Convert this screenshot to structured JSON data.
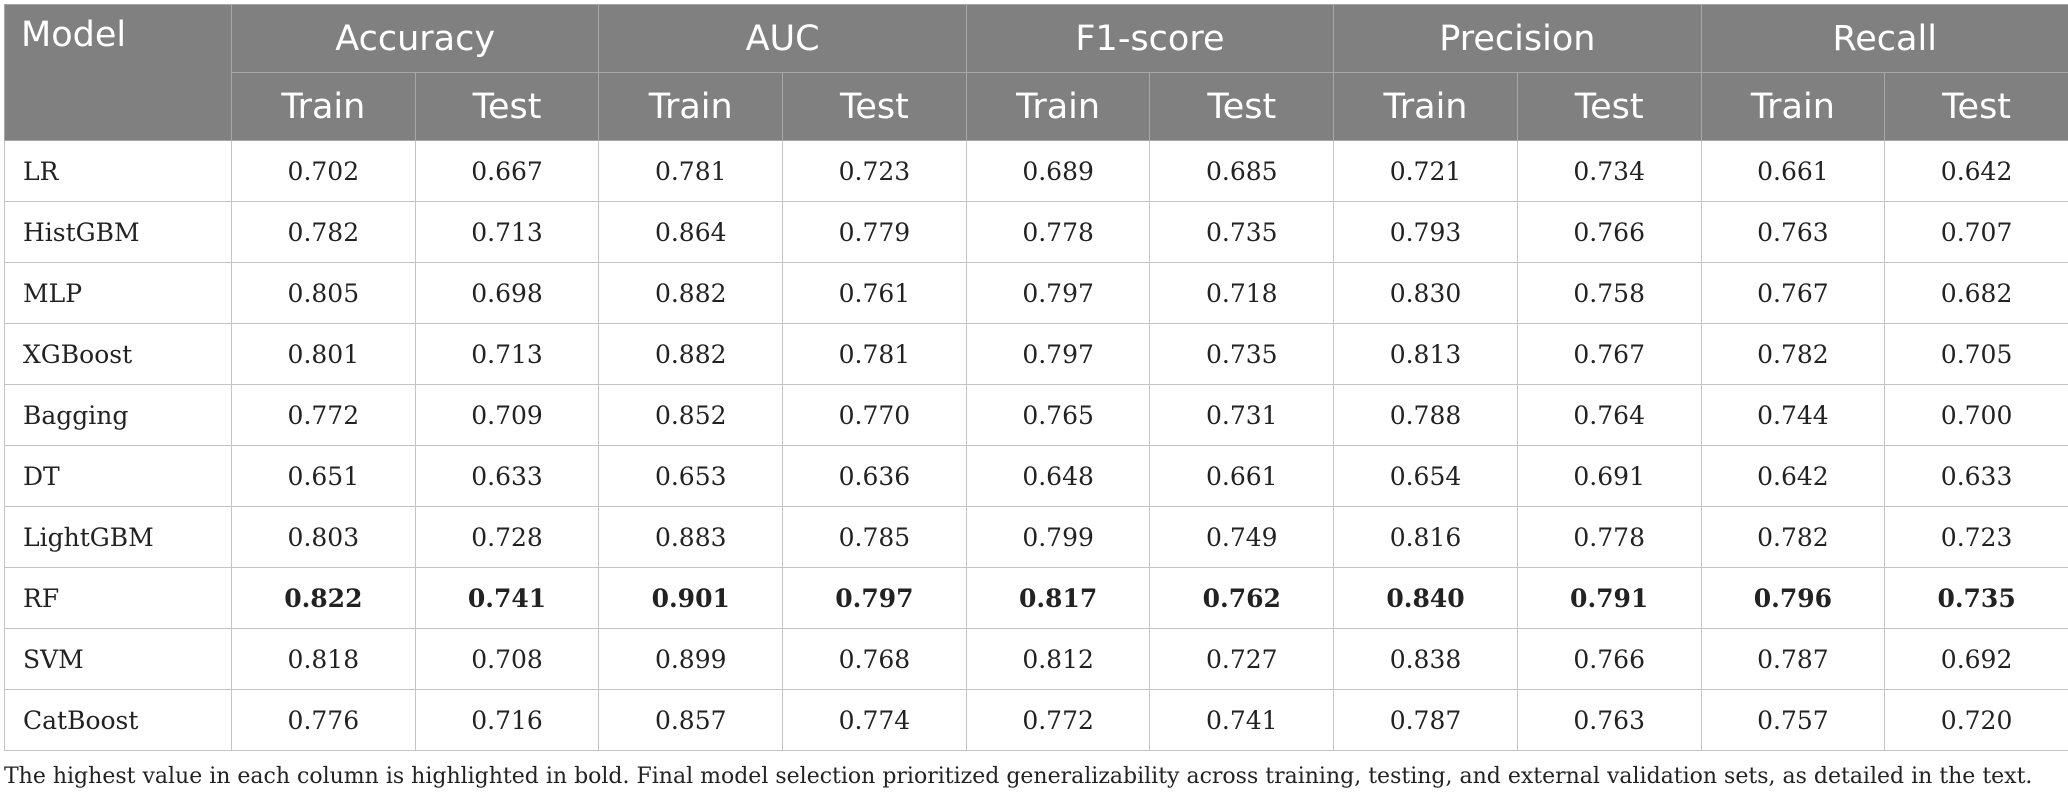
{
  "table": {
    "model_header": "Model",
    "metrics": [
      "Accuracy",
      "AUC",
      "F1-score",
      "Precision",
      "Recall"
    ],
    "subheaders": [
      "Train",
      "Test"
    ],
    "rows": [
      {
        "model": "LR",
        "values": [
          "0.702",
          "0.667",
          "0.781",
          "0.723",
          "0.689",
          "0.685",
          "0.721",
          "0.734",
          "0.661",
          "0.642"
        ]
      },
      {
        "model": "HistGBM",
        "values": [
          "0.782",
          "0.713",
          "0.864",
          "0.779",
          "0.778",
          "0.735",
          "0.793",
          "0.766",
          "0.763",
          "0.707"
        ]
      },
      {
        "model": "MLP",
        "values": [
          "0.805",
          "0.698",
          "0.882",
          "0.761",
          "0.797",
          "0.718",
          "0.830",
          "0.758",
          "0.767",
          "0.682"
        ]
      },
      {
        "model": "XGBoost",
        "values": [
          "0.801",
          "0.713",
          "0.882",
          "0.781",
          "0.797",
          "0.735",
          "0.813",
          "0.767",
          "0.782",
          "0.705"
        ]
      },
      {
        "model": "Bagging",
        "values": [
          "0.772",
          "0.709",
          "0.852",
          "0.770",
          "0.765",
          "0.731",
          "0.788",
          "0.764",
          "0.744",
          "0.700"
        ]
      },
      {
        "model": "DT",
        "values": [
          "0.651",
          "0.633",
          "0.653",
          "0.636",
          "0.648",
          "0.661",
          "0.654",
          "0.691",
          "0.642",
          "0.633"
        ]
      },
      {
        "model": "LightGBM",
        "values": [
          "0.803",
          "0.728",
          "0.883",
          "0.785",
          "0.799",
          "0.749",
          "0.816",
          "0.778",
          "0.782",
          "0.723"
        ]
      },
      {
        "model": "RF",
        "bold": true,
        "values": [
          "0.822",
          "0.741",
          "0.901",
          "0.797",
          "0.817",
          "0.762",
          "0.840",
          "0.791",
          "0.796",
          "0.735"
        ]
      },
      {
        "model": "SVM",
        "values": [
          "0.818",
          "0.708",
          "0.899",
          "0.768",
          "0.812",
          "0.727",
          "0.838",
          "0.766",
          "0.787",
          "0.692"
        ]
      },
      {
        "model": "CatBoost",
        "values": [
          "0.776",
          "0.716",
          "0.857",
          "0.774",
          "0.772",
          "0.741",
          "0.787",
          "0.763",
          "0.757",
          "0.720"
        ]
      }
    ]
  },
  "footnote": "The highest value in each column is highlighted in bold. Final model selection prioritized generalizability across training, testing, and external validation sets, as detailed in the text.",
  "colors": {
    "header_bg": "#808080",
    "header_text": "#ffffff",
    "border": "#c4c4c4",
    "body_text": "#222222"
  }
}
